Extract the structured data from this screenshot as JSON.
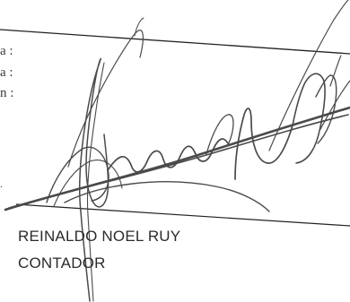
{
  "document": {
    "left_labels": [
      "a :",
      "a :",
      "n :",
      "."
    ],
    "signer": {
      "name": "REINALDO NOEL RUY",
      "role": "CONTADOR"
    }
  }
}
